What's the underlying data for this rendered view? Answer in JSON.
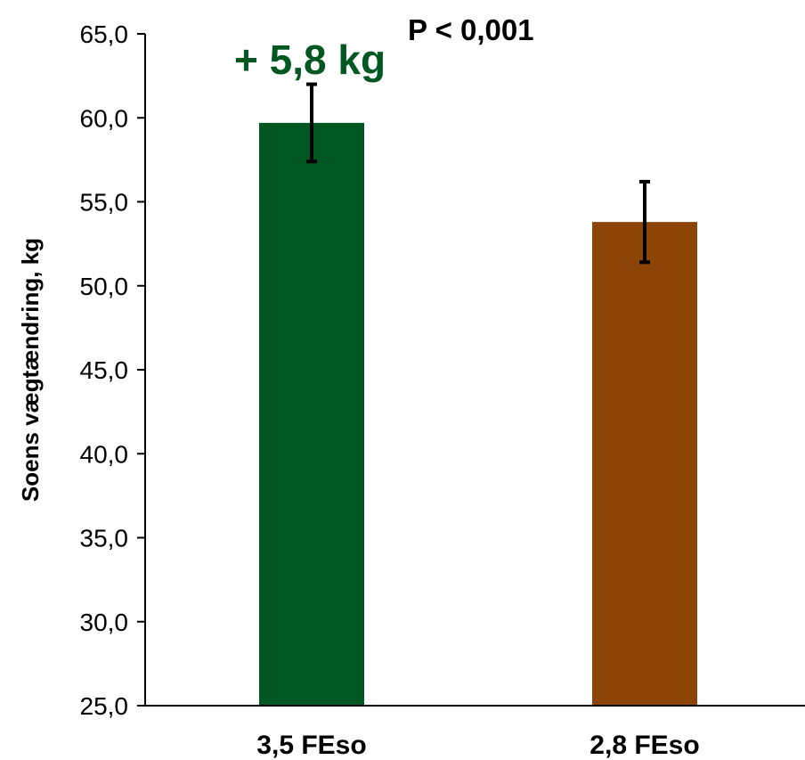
{
  "chart_data": {
    "type": "bar",
    "categories": [
      "3,5 FEso",
      "2,8 FEso"
    ],
    "values": [
      59.7,
      53.8
    ],
    "errors": [
      2.3,
      2.4
    ],
    "ylabel": "Soens vægtændring, kg",
    "ylim": [
      25.0,
      65.0
    ],
    "ytick_step": 5.0,
    "yticks": [
      "25,0",
      "30,0",
      "35,0",
      "40,0",
      "45,0",
      "50,0",
      "55,0",
      "60,0",
      "65,0"
    ],
    "colors": [
      "#015722",
      "#8c4507"
    ],
    "error_color": "#000000",
    "annotations": {
      "difference": "+ 5,8 kg",
      "difference_color": "#015722",
      "p_value": "P < 0,001"
    },
    "grid": false,
    "legend": "none"
  }
}
